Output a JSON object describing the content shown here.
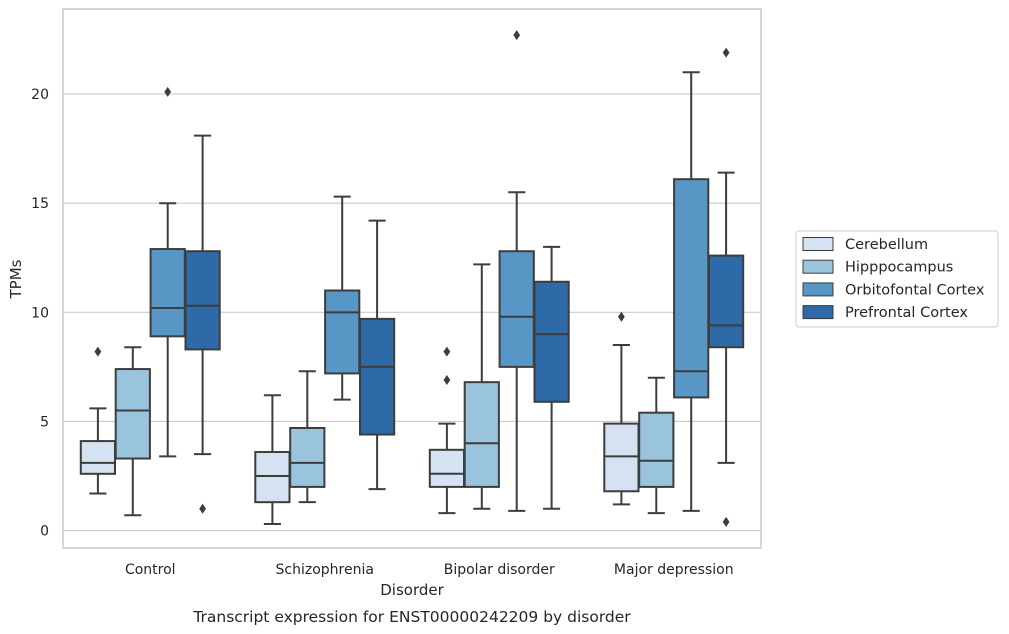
{
  "chart_data": {
    "type": "box",
    "xlabel": "Disorder",
    "ylabel": "TPMs",
    "caption": "Transcript expression for ENST00000242209 by disorder",
    "ylim": [
      -0.8,
      23.9
    ],
    "yticks": [
      0,
      5,
      10,
      15,
      20
    ],
    "grid": "horizontal",
    "legend_position": "right",
    "categories": [
      "Control",
      "Schizophrenia",
      "Bipolar disorder",
      "Major depression"
    ],
    "series": [
      {
        "name": "Cerebellum",
        "color": "#d4e2f1",
        "boxes": [
          {
            "whisker_low": 1.7,
            "q1": 2.6,
            "median": 3.1,
            "q3": 4.1,
            "whisker_high": 5.6,
            "outliers": [
              8.2
            ]
          },
          {
            "whisker_low": 0.3,
            "q1": 1.3,
            "median": 2.5,
            "q3": 3.6,
            "whisker_high": 6.2,
            "outliers": []
          },
          {
            "whisker_low": 0.8,
            "q1": 2.0,
            "median": 2.6,
            "q3": 3.7,
            "whisker_high": 4.9,
            "outliers": [
              6.9,
              8.2
            ]
          },
          {
            "whisker_low": 1.2,
            "q1": 1.8,
            "median": 3.4,
            "q3": 4.9,
            "whisker_high": 8.5,
            "outliers": [
              9.8
            ]
          }
        ]
      },
      {
        "name": "Hipppocampus",
        "color": "#9ac3de",
        "boxes": [
          {
            "whisker_low": 0.7,
            "q1": 3.3,
            "median": 5.5,
            "q3": 7.4,
            "whisker_high": 8.4,
            "outliers": []
          },
          {
            "whisker_low": 1.3,
            "q1": 2.0,
            "median": 3.1,
            "q3": 4.7,
            "whisker_high": 7.3,
            "outliers": []
          },
          {
            "whisker_low": 1.0,
            "q1": 2.0,
            "median": 4.0,
            "q3": 6.8,
            "whisker_high": 12.2,
            "outliers": []
          },
          {
            "whisker_low": 0.8,
            "q1": 2.0,
            "median": 3.2,
            "q3": 5.4,
            "whisker_high": 7.0,
            "outliers": []
          }
        ]
      },
      {
        "name": "Orbitofontal Cortex",
        "color": "#5897c5",
        "boxes": [
          {
            "whisker_low": 3.4,
            "q1": 8.9,
            "median": 10.2,
            "q3": 12.9,
            "whisker_high": 15.0,
            "outliers": [
              20.1
            ]
          },
          {
            "whisker_low": 6.0,
            "q1": 7.2,
            "median": 10.0,
            "q3": 11.0,
            "whisker_high": 15.3,
            "outliers": []
          },
          {
            "whisker_low": 0.9,
            "q1": 7.5,
            "median": 9.8,
            "q3": 12.8,
            "whisker_high": 15.5,
            "outliers": [
              22.7
            ]
          },
          {
            "whisker_low": 0.9,
            "q1": 6.1,
            "median": 7.3,
            "q3": 16.1,
            "whisker_high": 21.0,
            "outliers": []
          }
        ]
      },
      {
        "name": "Prefrontal Cortex",
        "color": "#2e69a8",
        "boxes": [
          {
            "whisker_low": 3.5,
            "q1": 8.3,
            "median": 10.3,
            "q3": 12.8,
            "whisker_high": 18.1,
            "outliers": [
              1.0
            ]
          },
          {
            "whisker_low": 1.9,
            "q1": 4.4,
            "median": 7.5,
            "q3": 9.7,
            "whisker_high": 14.2,
            "outliers": []
          },
          {
            "whisker_low": 1.0,
            "q1": 5.9,
            "median": 9.0,
            "q3": 11.4,
            "whisker_high": 13.0,
            "outliers": []
          },
          {
            "whisker_low": 3.1,
            "q1": 8.4,
            "median": 9.4,
            "q3": 12.6,
            "whisker_high": 16.4,
            "outliers": [
              0.4,
              21.9
            ]
          }
        ]
      }
    ]
  }
}
